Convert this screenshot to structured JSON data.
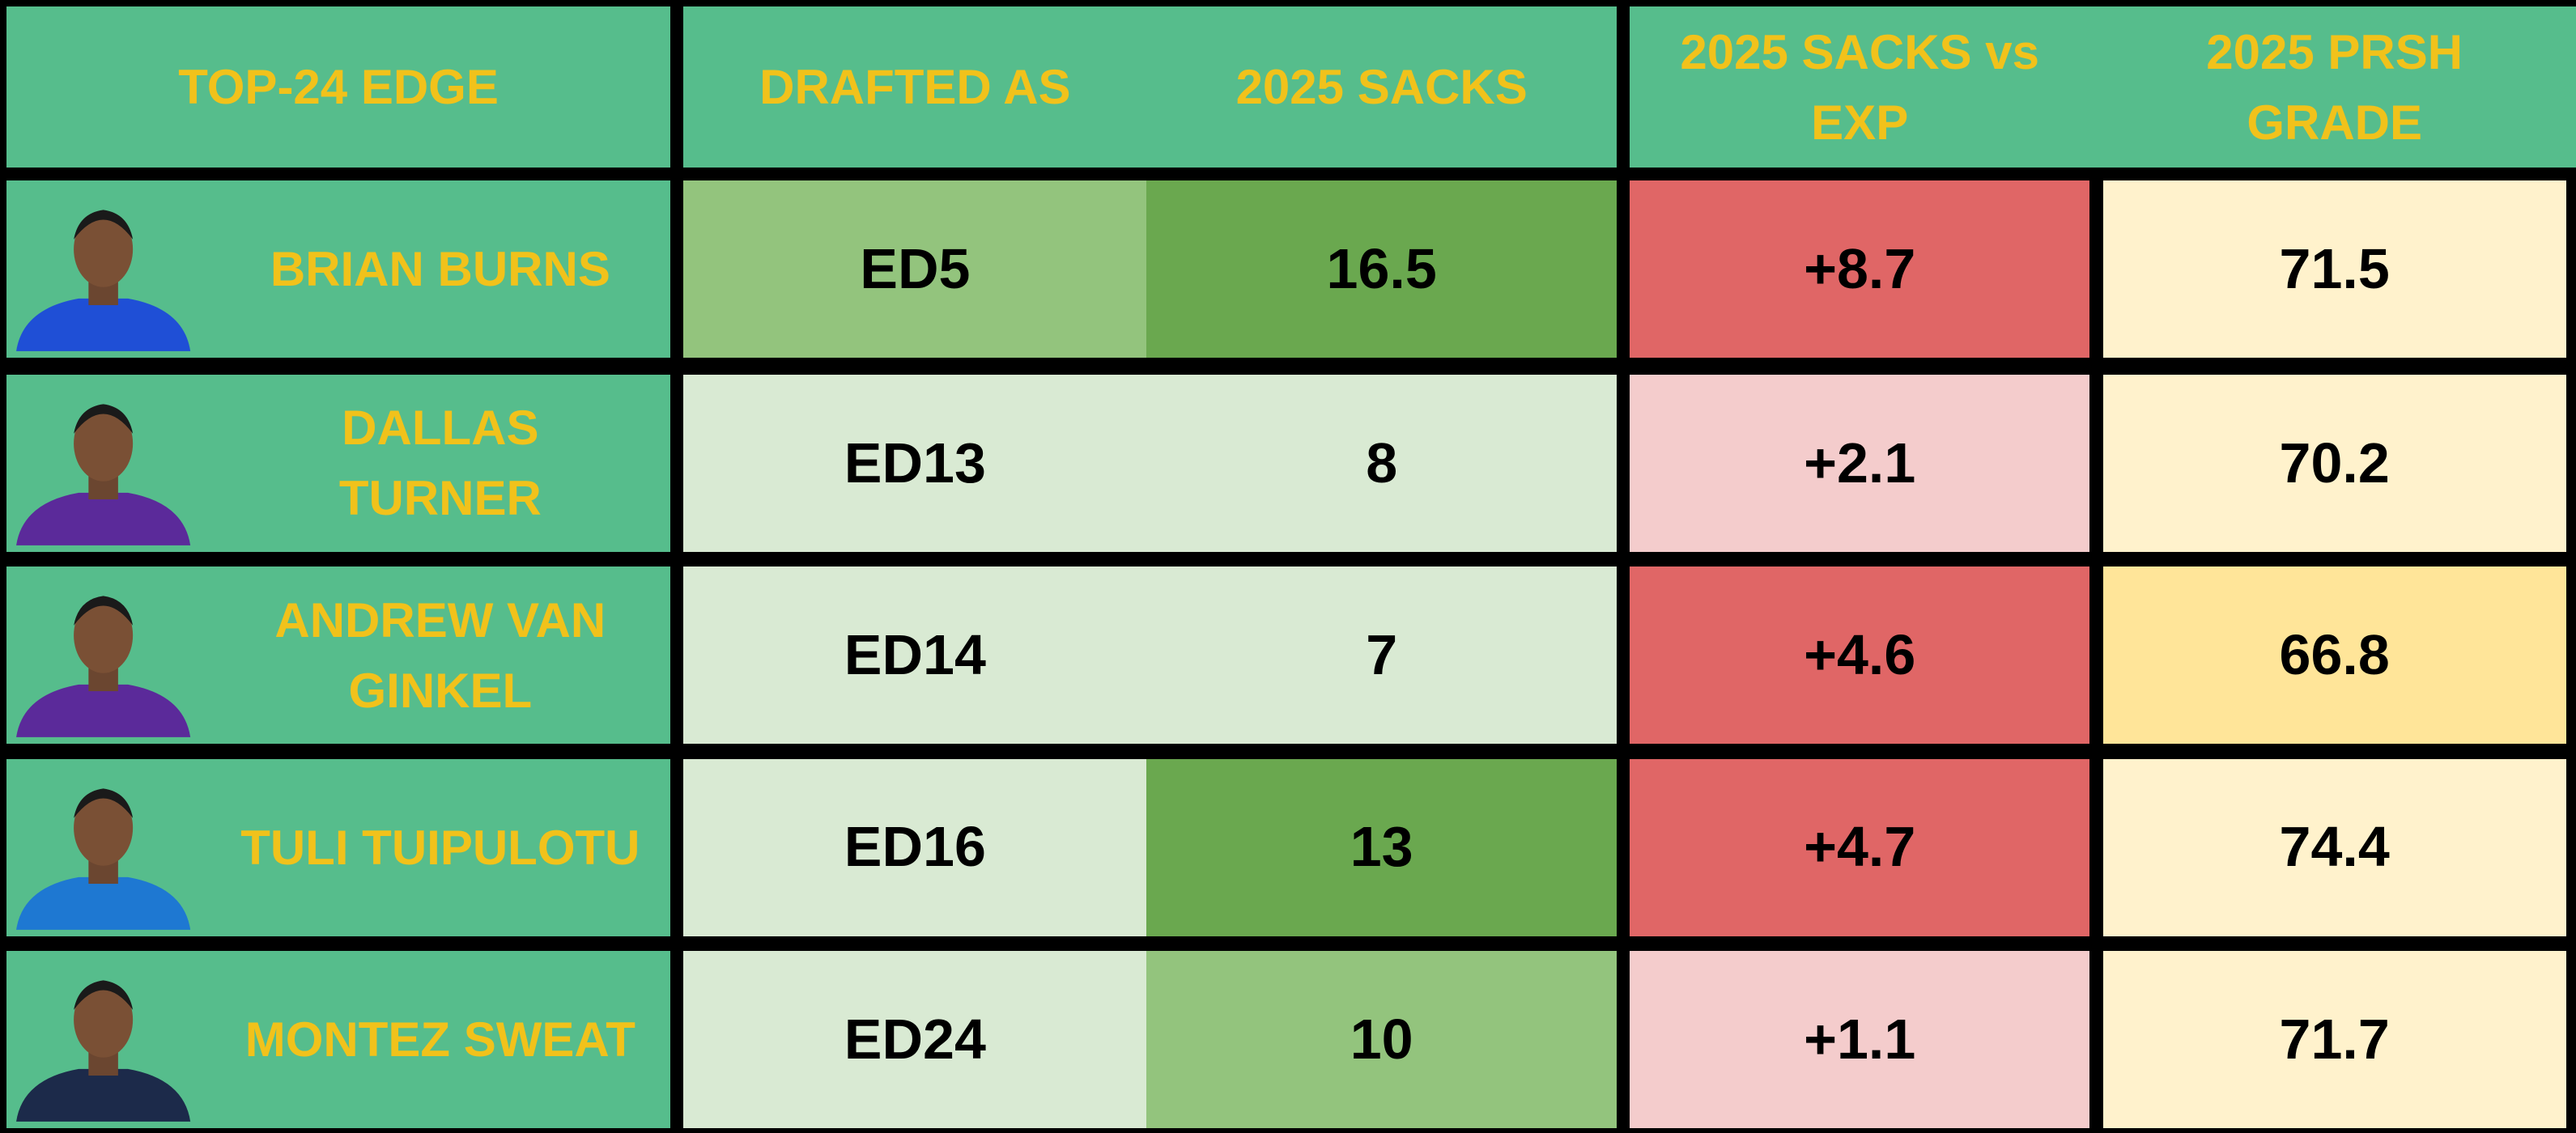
{
  "header": [
    "TOP-24 EDGE",
    "DRAFTED AS",
    "2025 SACKS",
    "2025 SACKS vs EXP",
    "2025 PRSH GRADE"
  ],
  "rows": [
    {
      "player": "BRIAN BURNS",
      "drafted_as": "ED5",
      "sacks_2025": 16.5,
      "sacks_vs_exp": "+8.7",
      "prsh_grade": 71.5,
      "fills": [
        "#93c47d",
        "#6aa84f",
        "#e06666",
        "#fff2cc"
      ]
    },
    {
      "player": "DALLAS TURNER",
      "drafted_as": "ED13",
      "sacks_2025": 8,
      "sacks_vs_exp": "+2.1",
      "prsh_grade": 70.2,
      "fills": [
        "#d9ead3",
        "#d9ead3",
        "#f4cccc",
        "#fff2cc"
      ]
    },
    {
      "player": "ANDREW VAN GINKEL",
      "drafted_as": "ED14",
      "sacks_2025": 7,
      "sacks_vs_exp": "+4.6",
      "prsh_grade": 66.8,
      "fills": [
        "#d9ead3",
        "#d9ead3",
        "#e06666",
        "#ffe599"
      ]
    },
    {
      "player": "TULI TUIPULOTU",
      "drafted_as": "ED16",
      "sacks_2025": 13,
      "sacks_vs_exp": "+4.7",
      "prsh_grade": 74.4,
      "fills": [
        "#d9ead3",
        "#6aa84f",
        "#e06666",
        "#fff2cc"
      ]
    },
    {
      "player": "MONTEZ SWEAT",
      "drafted_as": "ED24",
      "sacks_2025": 10,
      "sacks_vs_exp": "+1.1",
      "prsh_grade": 71.7,
      "fills": [
        "#d9ead3",
        "#93c47d",
        "#f4cccc",
        "#fff2cc"
      ]
    }
  ]
}
